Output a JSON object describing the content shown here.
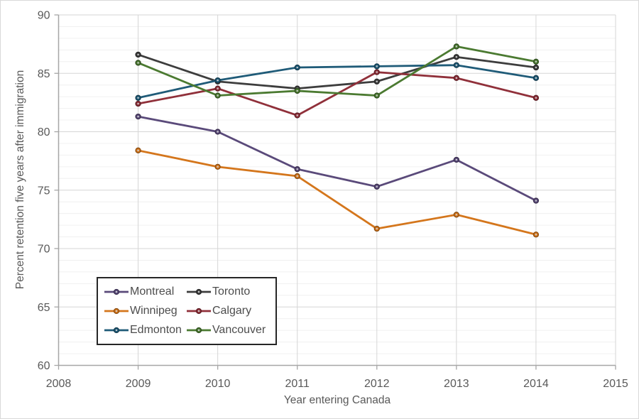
{
  "page": {
    "background": "#ffffff",
    "border_color": "#d9d9d9"
  },
  "axes": {
    "x": {
      "title": "Year entering Canada",
      "tick_labels": [
        "2008",
        "2009",
        "2010",
        "2011",
        "2012",
        "2013",
        "2014",
        "2015"
      ],
      "min": 2008,
      "max": 2015
    },
    "y": {
      "title": "Percent retention five years after immigration",
      "tick_labels": [
        "90",
        "85",
        "80",
        "75",
        "70",
        "65",
        "60"
      ],
      "min": 60,
      "max": 90,
      "major_step": 5,
      "minor_step": 1
    }
  },
  "colors": {
    "axis_line": "#a6a6a6",
    "major_grid": "#d6d6d6",
    "minor_grid": "#f0f0f0",
    "text": "#595959",
    "legend_border": "#262626",
    "marker_center_dot": "#cfcfcf"
  },
  "legend": {
    "rows": [
      [
        "Montreal",
        "Toronto"
      ],
      [
        "Winnipeg",
        "Calgary"
      ],
      [
        "Edmonton",
        "Vancouver"
      ]
    ],
    "position": "inside-bottom-left"
  },
  "chart_data": {
    "type": "line",
    "title": "",
    "xlabel": "Year entering Canada",
    "ylabel": "Percent retention five years after immigration",
    "x": [
      2009,
      2010,
      2011,
      2012,
      2013,
      2014
    ],
    "xlim": [
      2008,
      2015
    ],
    "ylim": [
      60,
      90
    ],
    "y_major_gridlines": [
      60,
      65,
      70,
      75,
      80,
      85,
      90
    ],
    "y_minor_gridline_step": 1,
    "x_gridline_step": 1,
    "grid": "on",
    "legend_position": "inside-bottom-left",
    "series": [
      {
        "name": "Montreal",
        "color": "#5a4a7a",
        "values": [
          81.3,
          80.0,
          76.8,
          75.3,
          77.6,
          74.1
        ]
      },
      {
        "name": "Toronto",
        "color": "#3d3d3d",
        "values": [
          86.6,
          84.3,
          83.7,
          84.3,
          86.4,
          85.5
        ]
      },
      {
        "name": "Winnipeg",
        "color": "#d4761c",
        "values": [
          78.4,
          77.0,
          76.2,
          71.7,
          72.9,
          71.2
        ]
      },
      {
        "name": "Calgary",
        "color": "#90303a",
        "values": [
          82.4,
          83.7,
          81.4,
          85.1,
          84.6,
          82.9
        ]
      },
      {
        "name": "Edmonton",
        "color": "#1f5b78",
        "values": [
          82.9,
          84.4,
          85.5,
          85.6,
          85.7,
          84.6
        ]
      },
      {
        "name": "Vancouver",
        "color": "#4b7a31",
        "values": [
          85.9,
          83.1,
          83.5,
          83.1,
          87.3,
          86.0
        ]
      }
    ]
  }
}
